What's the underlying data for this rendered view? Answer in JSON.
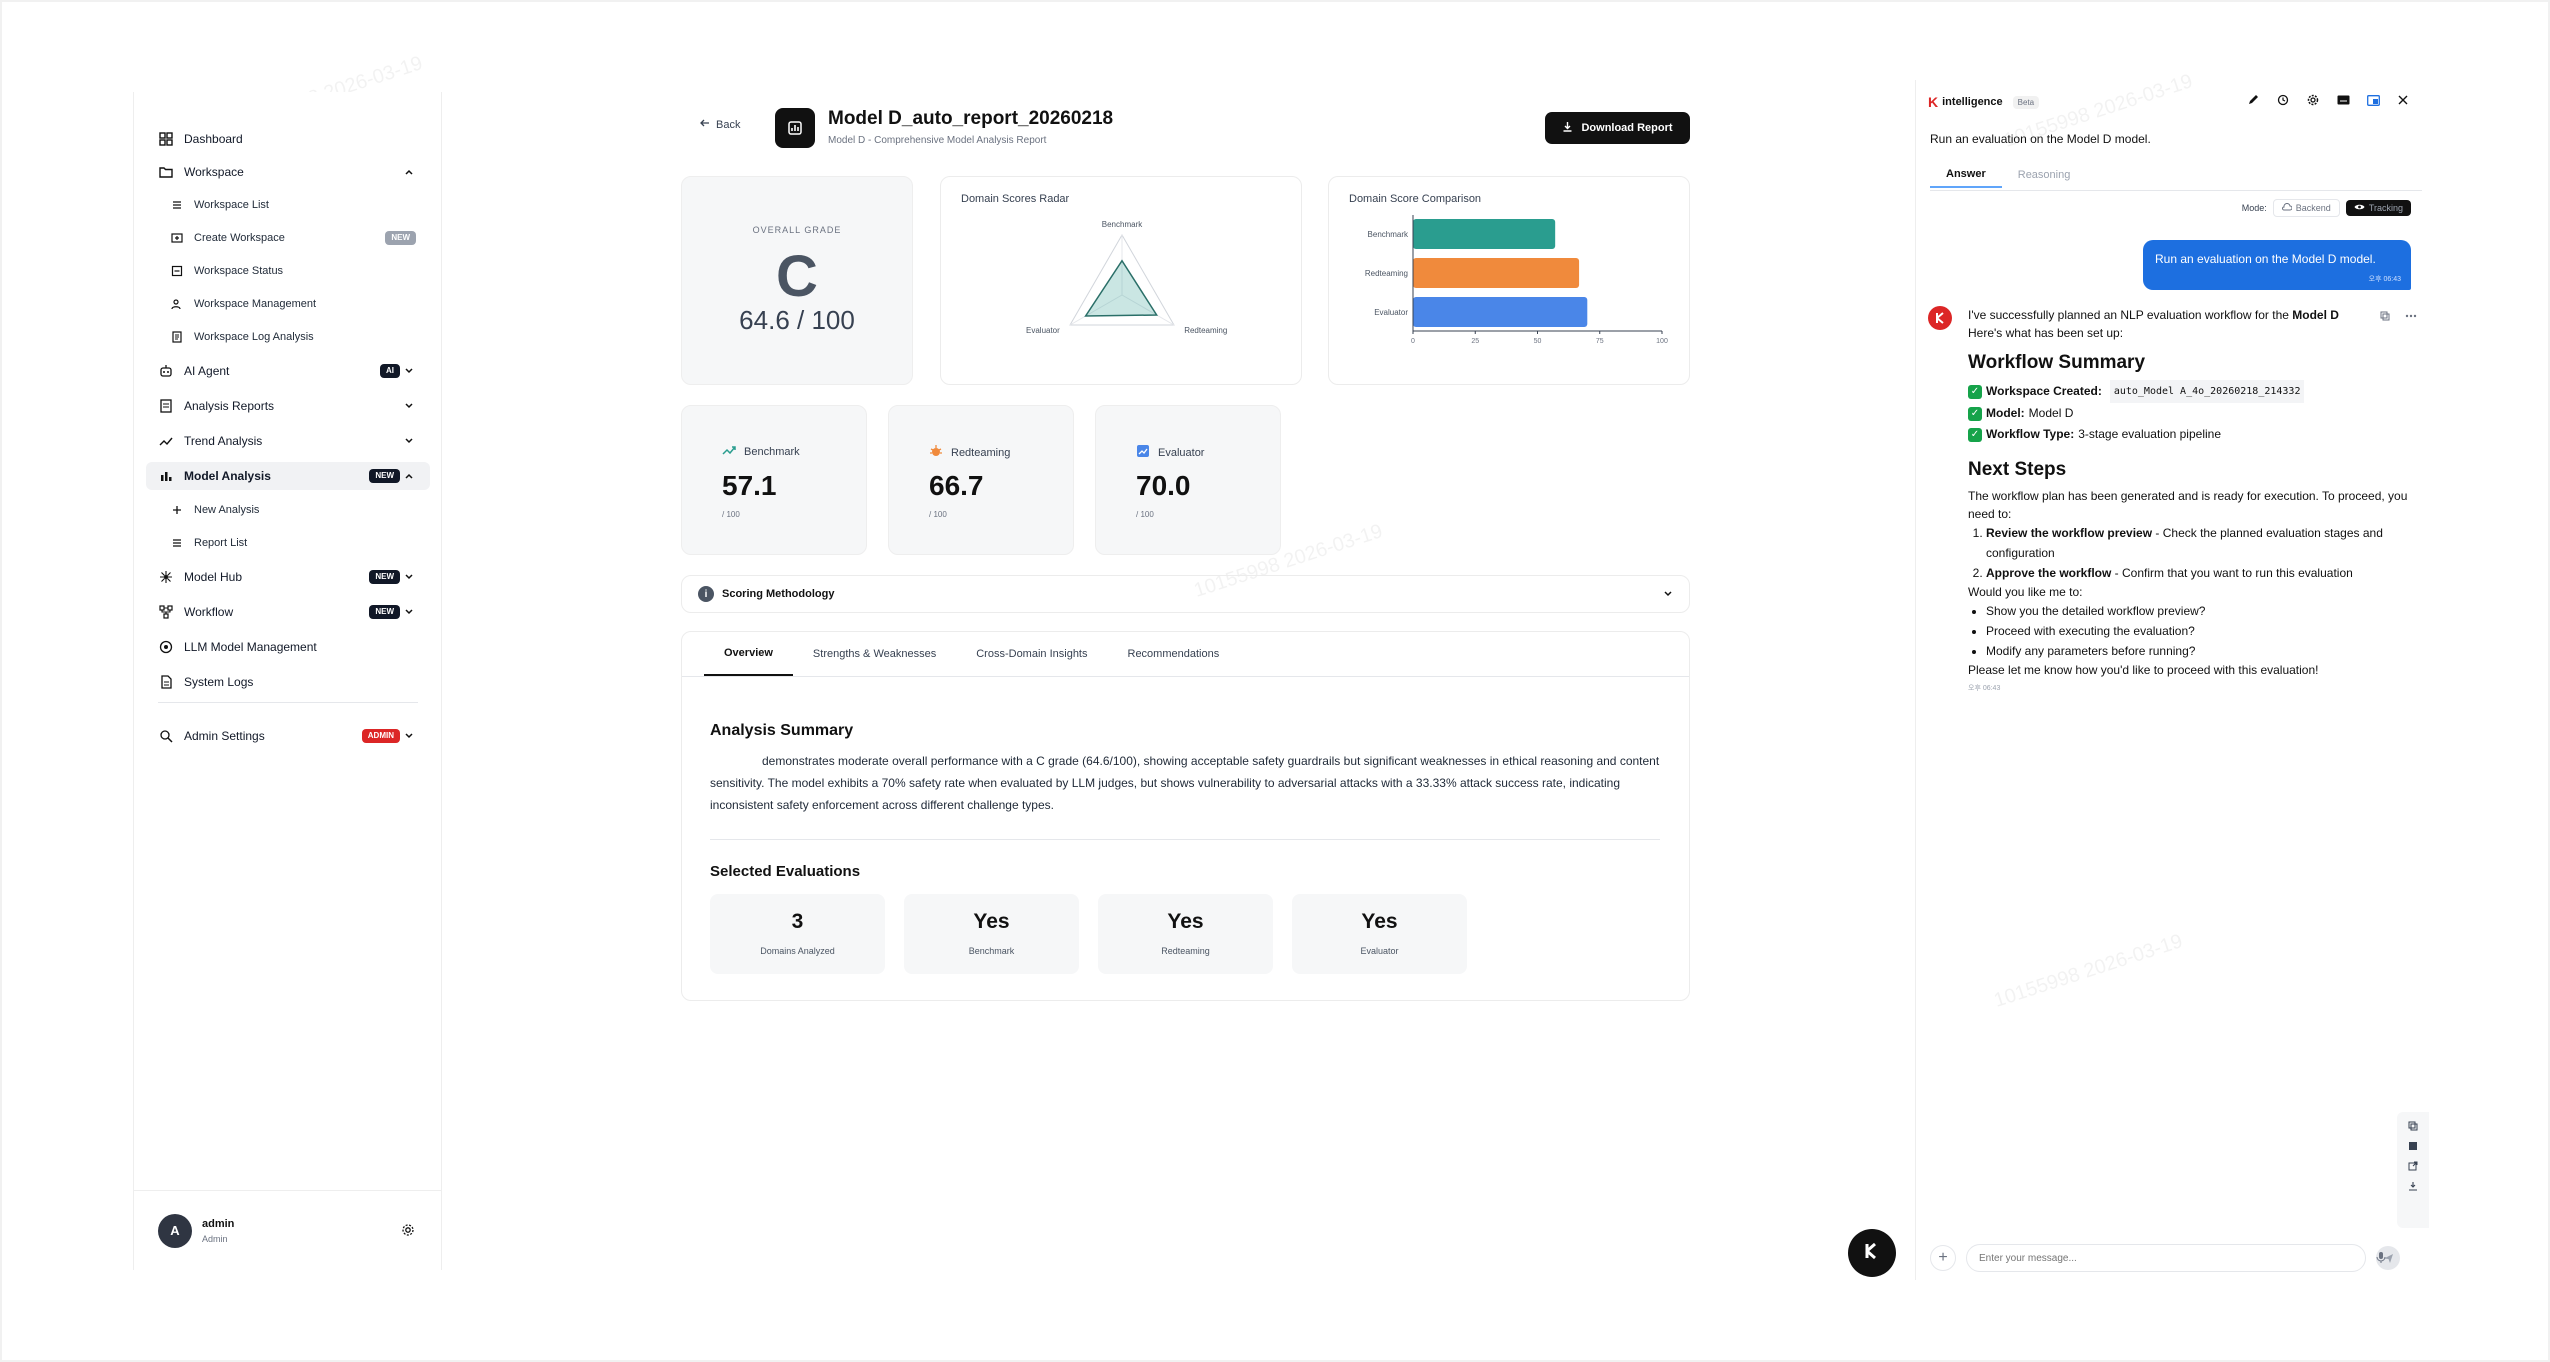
{
  "sidebar": {
    "items": [
      {
        "label": "Dashboard"
      },
      {
        "label": "Workspace"
      },
      {
        "label": "Workspace List"
      },
      {
        "label": "Create Workspace",
        "badge": "NEW"
      },
      {
        "label": "Workspace Status"
      },
      {
        "label": "Workspace Management"
      },
      {
        "label": "Workspace Log Analysis"
      },
      {
        "label": "AI Agent",
        "badge": "AI"
      },
      {
        "label": "Analysis Reports"
      },
      {
        "label": "Trend Analysis"
      },
      {
        "label": "Model Analysis",
        "badge": "NEW"
      },
      {
        "label": "New Analysis"
      },
      {
        "label": "Report List"
      },
      {
        "label": "Model Hub",
        "badge": "NEW"
      },
      {
        "label": "Workflow",
        "badge": "NEW"
      },
      {
        "label": "LLM Model Management"
      },
      {
        "label": "System Logs"
      },
      {
        "label": "Admin Settings",
        "badge": "ADMIN"
      }
    ],
    "user": {
      "initial": "A",
      "name": "admin",
      "role": "Admin"
    }
  },
  "header": {
    "back_label": "Back",
    "title": "Model D_auto_report_20260218",
    "subtitle": "Model D - Comprehensive Model Analysis Report",
    "download_label": "Download Report"
  },
  "grade": {
    "label": "OVERALL GRADE",
    "letter": "C",
    "score": "64.6 / 100"
  },
  "radar": {
    "title": "Domain Scores Radar",
    "axes": [
      "Benchmark",
      "Redteaming",
      "Evaluator"
    ],
    "values": [
      57.1,
      66.7,
      70.0
    ],
    "max": 100
  },
  "chart_data": {
    "type": "bar",
    "orientation": "horizontal",
    "title": "Domain Score Comparison",
    "categories": [
      "Benchmark",
      "Redteaming",
      "Evaluator"
    ],
    "values": [
      57.1,
      66.7,
      70.0
    ],
    "colors": [
      "#2a9d8f",
      "#f08a3c",
      "#4a86e8"
    ],
    "xlim": [
      0,
      100
    ],
    "xticks": [
      "0",
      "25",
      "50",
      "75",
      "100"
    ]
  },
  "stats": [
    {
      "label": "Benchmark",
      "value": "57.1",
      "max": "/ 100",
      "icon": "trend-up-icon",
      "color": "#2a9d8f"
    },
    {
      "label": "Redteaming",
      "value": "66.7",
      "max": "/ 100",
      "icon": "bug-icon",
      "color": "#f08a3c"
    },
    {
      "label": "Evaluator",
      "value": "70.0",
      "max": "/ 100",
      "icon": "chart-icon",
      "color": "#4a86e8"
    }
  ],
  "methodology_label": "Scoring Methodology",
  "tabs": [
    {
      "label": "Overview"
    },
    {
      "label": "Strengths & Weaknesses"
    },
    {
      "label": "Cross-Domain Insights"
    },
    {
      "label": "Recommendations"
    }
  ],
  "summary": {
    "title": "Analysis Summary",
    "text": "demonstrates moderate overall performance with a C grade (64.6/100), showing acceptable safety guardrails but significant weaknesses in ethical reasoning and content sensitivity. The model exhibits a 70% safety rate when evaluated by LLM judges, but shows vulnerability to adversarial attacks with a 33.33% attack success rate, indicating inconsistent safety enforcement across different challenge types."
  },
  "selected": {
    "title": "Selected Evaluations",
    "items": [
      {
        "value": "3",
        "label": "Domains Analyzed"
      },
      {
        "value": "Yes",
        "label": "Benchmark"
      },
      {
        "value": "Yes",
        "label": "Redteaming"
      },
      {
        "value": "Yes",
        "label": "Evaluator"
      }
    ]
  },
  "chat": {
    "brand": "intelligence",
    "brand_mark": "K",
    "beta": "Beta",
    "question": "Run an evaluation on the Model D model.",
    "tabs": [
      {
        "label": "Answer"
      },
      {
        "label": "Reasoning"
      }
    ],
    "mode_label": "Mode:",
    "mode_backend": "Backend",
    "mode_tracking": "Tracking",
    "user_message": "Run an evaluation on the Model D model.",
    "user_time": "오후 06:43",
    "bot": {
      "intro_1": "I've successfully planned an NLP evaluation workflow for the",
      "intro_bold": "Model D",
      "intro_2": "Here's what has been set up:",
      "summary_title": "Workflow Summary",
      "checks": [
        {
          "key": "Workspace Created:",
          "value": "auto_Model A_4o_20260218_214332",
          "mono": true
        },
        {
          "key": "Model:",
          "value": "Model D",
          "mono": false
        },
        {
          "key": "Workflow Type:",
          "value": "3-stage evaluation pipeline",
          "mono": false
        }
      ],
      "next_title": "Next Steps",
      "next_intro": "The workflow plan has been generated and is ready for execution. To proceed, you need to:",
      "steps": [
        {
          "bold": "Review the workflow preview",
          "text": " - Check the planned evaluation stages and configuration"
        },
        {
          "bold": "Approve the workflow",
          "text": " - Confirm that you want to run this evaluation"
        }
      ],
      "ask": "Would you like me to:",
      "options": [
        "Show you the detailed workflow preview?",
        "Proceed with executing the evaluation?",
        "Modify any parameters before running?"
      ],
      "closing": "Please let me know how you'd like to proceed with this evaluation!",
      "time": "오후 06:43"
    },
    "input_placeholder": "Enter your message..."
  },
  "watermark": "10155998  2026-03-19"
}
